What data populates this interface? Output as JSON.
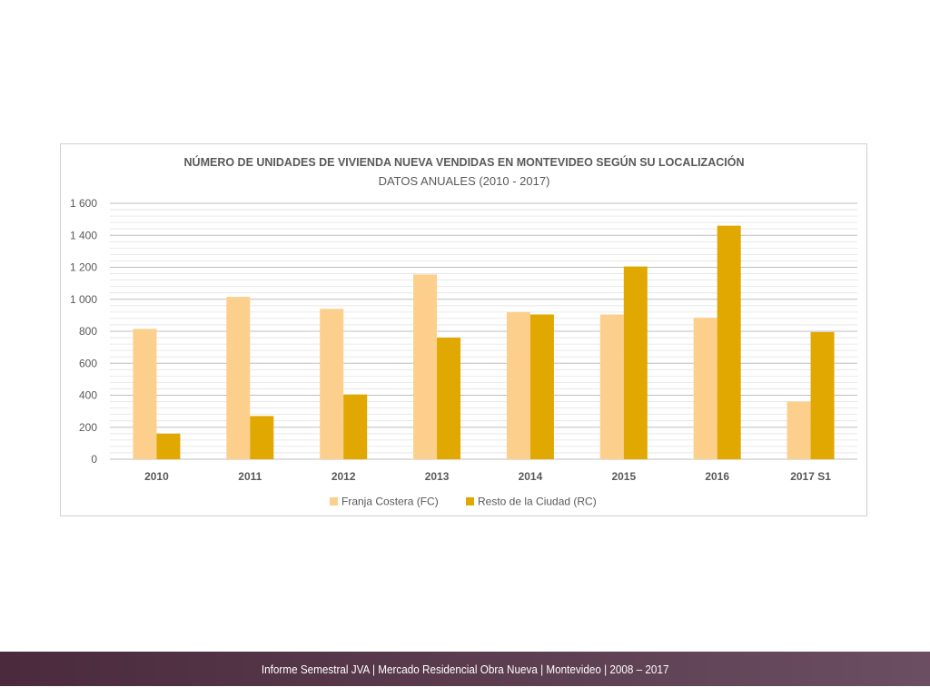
{
  "chart_data": {
    "type": "bar",
    "title": "NÚMERO DE UNIDADES DE VIVIENDA NUEVA VENDIDAS EN MONTEVIDEO SEGÚN SU LOCALIZACIÓN",
    "subtitle": "DATOS ANUALES (2010 - 2017)",
    "categories": [
      "2010",
      "2011",
      "2012",
      "2013",
      "2014",
      "2015",
      "2016",
      "2017 S1"
    ],
    "series": [
      {
        "name": "Franja Costera (FC)",
        "color": "#fcd08c",
        "values": [
          815,
          1015,
          940,
          1155,
          920,
          905,
          885,
          360
        ]
      },
      {
        "name": "Resto de la Ciudad (RC)",
        "color": "#e0a800",
        "values": [
          160,
          270,
          405,
          760,
          905,
          1205,
          1460,
          795
        ]
      }
    ],
    "ylim": [
      0,
      1600
    ],
    "yticks": [
      0,
      200,
      400,
      600,
      800,
      1000,
      1200,
      1400,
      1600
    ],
    "ytick_labels": [
      "0",
      "200",
      "400",
      "600",
      "800",
      "1 000",
      "1 200",
      "1 400",
      "1 600"
    ],
    "grid": true,
    "legend_position": "bottom"
  },
  "footer": {
    "text": "Informe Semestral JVA | Mercado Residencial Obra Nueva | Montevideo | 2008 – 2017"
  }
}
